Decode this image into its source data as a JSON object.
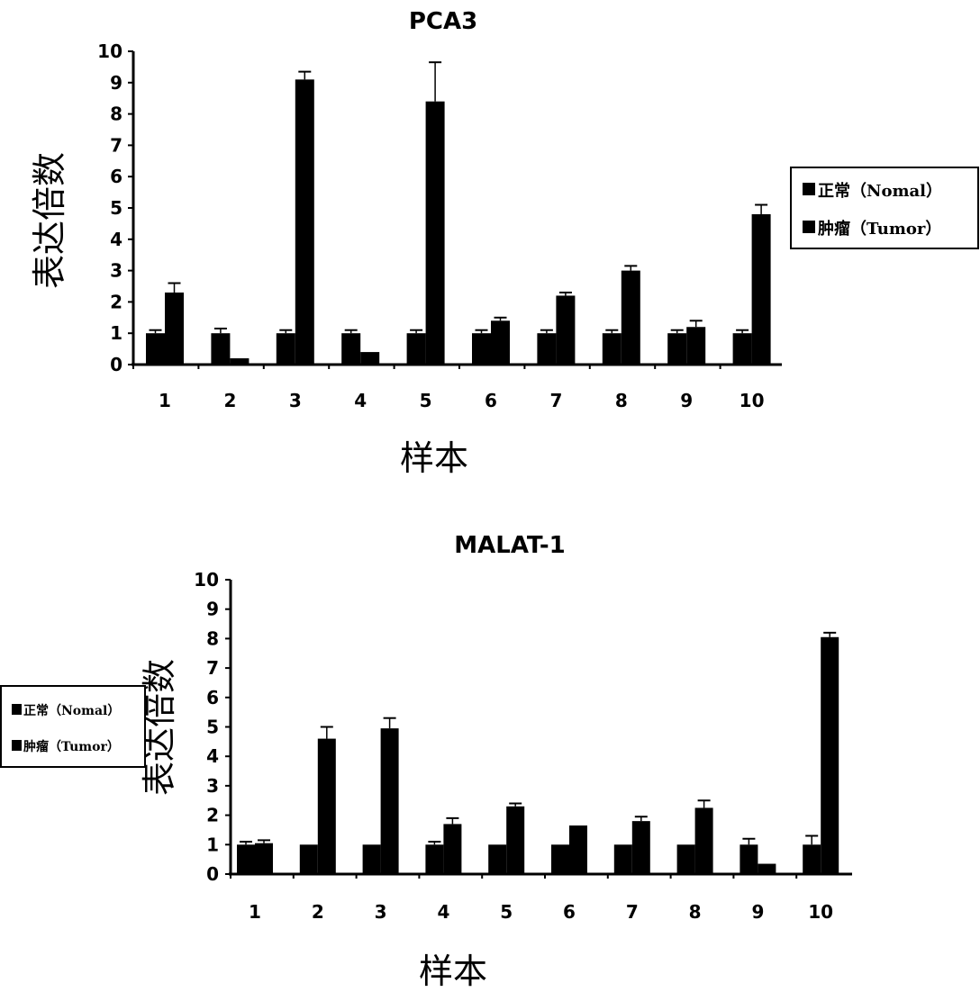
{
  "chart_data": [
    {
      "type": "bar",
      "title": "PCA3",
      "xlabel": "样本",
      "ylabel": "表达倍数",
      "ylim": [
        0,
        10
      ],
      "yticks": [
        "0",
        "1",
        "2",
        "3",
        "4",
        "5",
        "6",
        "7",
        "8",
        "9",
        "10"
      ],
      "categories": [
        "1",
        "2",
        "3",
        "4",
        "5",
        "6",
        "7",
        "8",
        "9",
        "10"
      ],
      "series": [
        {
          "name": "正常（Nomal）",
          "values": [
            1,
            1,
            1,
            1,
            1,
            1,
            1,
            1,
            1,
            1
          ],
          "errors": [
            0.1,
            0.15,
            0.1,
            0.1,
            0.1,
            0.1,
            0.1,
            0.1,
            0.1,
            0.1
          ]
        },
        {
          "name": "肿瘤（Tumor）",
          "values": [
            2.3,
            0.2,
            9.1,
            0.4,
            8.4,
            1.4,
            2.2,
            3.0,
            1.2,
            4.8
          ],
          "errors": [
            0.3,
            0,
            0.25,
            0,
            1.25,
            0.1,
            0.1,
            0.15,
            0.2,
            0.3
          ]
        }
      ],
      "legend_position": "right"
    },
    {
      "type": "bar",
      "title": "MALAT-1",
      "xlabel": "样本",
      "ylabel": "表达倍数",
      "ylim": [
        0,
        10
      ],
      "yticks": [
        "0",
        "1",
        "2",
        "3",
        "4",
        "5",
        "6",
        "7",
        "8",
        "9",
        "10"
      ],
      "categories": [
        "1",
        "2",
        "3",
        "4",
        "5",
        "6",
        "7",
        "8",
        "9",
        "10"
      ],
      "series": [
        {
          "name": "正常（Nomal）",
          "values": [
            1,
            1,
            1,
            1,
            1,
            1,
            1,
            1,
            1,
            1
          ],
          "errors": [
            0.1,
            0,
            0,
            0.1,
            0,
            0,
            0,
            0,
            0.2,
            0.3
          ]
        },
        {
          "name": "肿瘤（Tumor）",
          "values": [
            1.05,
            4.6,
            4.95,
            1.7,
            2.3,
            1.65,
            1.8,
            2.25,
            0.35,
            8.05
          ],
          "errors": [
            0.1,
            0.4,
            0.35,
            0.2,
            0.1,
            0,
            0.15,
            0.25,
            0,
            0.15
          ]
        }
      ],
      "legend_position": "left"
    }
  ],
  "colors": {
    "bars": "#000000",
    "background": "#ffffff"
  }
}
